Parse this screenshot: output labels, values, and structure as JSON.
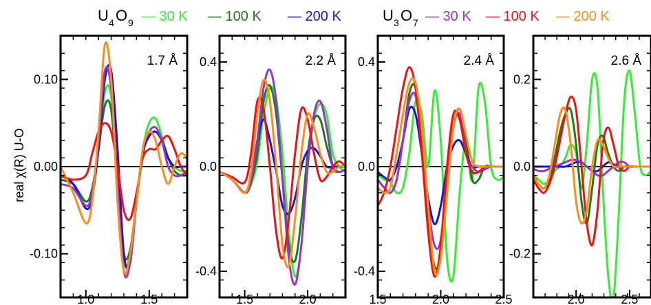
{
  "legend": {
    "group1": {
      "compound_base1": "U",
      "compound_sub1": "4",
      "compound_base2": "O",
      "compound_sub2": "9",
      "entries": [
        {
          "label": "— 30 K",
          "color": "#33ee33"
        },
        {
          "label": "— 100 K",
          "color": "#1f7a1f"
        },
        {
          "label": "— 200 K",
          "color": "#1515d9"
        }
      ]
    },
    "group2": {
      "compound_base1": "U",
      "compound_sub1": "3",
      "compound_base2": "O",
      "compound_sub2": "7",
      "entries": [
        {
          "label": "— 30 K",
          "color": "#9933cc"
        },
        {
          "label": "— 100 K",
          "color": "#ee1111"
        },
        {
          "label": "— 200 K",
          "color": "#ff8c1a"
        }
      ]
    }
  },
  "ylabel": "real χ(R) U-O",
  "chart_data": [
    {
      "type": "line",
      "annotation": "1.7 Å",
      "xlim": [
        0.8,
        1.8
      ],
      "ylim": [
        -0.15,
        0.15
      ],
      "xticks": [
        "1.0",
        "1.5"
      ],
      "xtick_values": [
        1.0,
        1.5
      ],
      "yticks": [
        "0.10",
        "0.00",
        "-0.10"
      ],
      "ytick_values": [
        0.1,
        0.0,
        -0.1
      ],
      "x": [
        0.8,
        0.9,
        1.0,
        1.05,
        1.1,
        1.15,
        1.2,
        1.25,
        1.3,
        1.35,
        1.4,
        1.45,
        1.5,
        1.55,
        1.6,
        1.65,
        1.7,
        1.75,
        1.8
      ],
      "series": [
        {
          "key": "U4O9-30K",
          "color": "#33ee33",
          "values": [
            -0.01,
            -0.02,
            -0.045,
            -0.03,
            0.02,
            0.085,
            0.08,
            -0.03,
            -0.11,
            -0.1,
            -0.04,
            0.02,
            0.05,
            0.055,
            0.035,
            0.01,
            0.0,
            -0.005,
            -0.005
          ]
        },
        {
          "key": "U4O9-100K",
          "color": "#1f7a1f",
          "values": [
            -0.015,
            -0.02,
            -0.04,
            -0.025,
            0.02,
            0.07,
            0.065,
            -0.02,
            -0.1,
            -0.095,
            -0.04,
            0.015,
            0.035,
            0.04,
            0.03,
            0.01,
            -0.005,
            -0.01,
            -0.01
          ]
        },
        {
          "key": "U4O9-200K",
          "color": "#1515d9",
          "values": [
            -0.01,
            -0.02,
            -0.048,
            -0.035,
            0.02,
            0.1,
            0.11,
            0.02,
            -0.1,
            -0.11,
            -0.04,
            0.015,
            0.035,
            0.04,
            0.03,
            0.01,
            0.0,
            0.0,
            0.0
          ]
        },
        {
          "key": "U3O7-30K",
          "color": "#9933cc",
          "values": [
            -0.02,
            -0.025,
            -0.045,
            -0.03,
            0.03,
            0.11,
            0.09,
            -0.02,
            -0.12,
            -0.11,
            -0.04,
            0.02,
            0.04,
            0.045,
            0.03,
            0.0,
            -0.01,
            -0.01,
            -0.005
          ]
        },
        {
          "key": "U3O7-100K",
          "color": "#ee1111",
          "values": [
            -0.01,
            -0.015,
            -0.01,
            0.015,
            0.04,
            0.05,
            0.04,
            0.0,
            -0.05,
            -0.06,
            -0.03,
            0.01,
            0.02,
            0.02,
            0.03,
            0.035,
            0.02,
            0.0,
            -0.01
          ]
        },
        {
          "key": "U3O7-200K",
          "color": "#ff8c1a",
          "values": [
            0.0,
            -0.03,
            -0.065,
            -0.04,
            0.04,
            0.14,
            0.1,
            -0.04,
            -0.12,
            -0.1,
            -0.04,
            0.02,
            0.04,
            0.03,
            0.0,
            -0.02,
            0.0,
            0.015,
            0.01
          ]
        }
      ]
    },
    {
      "type": "line",
      "annotation": "2.2 Å",
      "xlim": [
        1.3,
        2.3
      ],
      "ylim": [
        -0.5,
        0.5
      ],
      "xticks": [
        "1.5",
        "2.0"
      ],
      "xtick_values": [
        1.5,
        2.0
      ],
      "yticks": [
        "0.4",
        "0.0",
        "-0.4"
      ],
      "ytick_values": [
        0.4,
        0.0,
        -0.4
      ],
      "x": [
        1.3,
        1.4,
        1.5,
        1.55,
        1.6,
        1.65,
        1.7,
        1.75,
        1.8,
        1.85,
        1.9,
        1.95,
        2.0,
        2.05,
        2.1,
        2.15,
        2.2,
        2.25,
        2.3
      ],
      "series": [
        {
          "key": "U4O9-30K",
          "color": "#33ee33",
          "values": [
            -0.02,
            -0.05,
            -0.1,
            -0.07,
            0.02,
            0.2,
            0.3,
            0.26,
            0.05,
            -0.25,
            -0.42,
            -0.3,
            0.0,
            0.18,
            0.24,
            0.2,
            0.05,
            0.0,
            -0.02
          ]
        },
        {
          "key": "U4O9-100K",
          "color": "#1f7a1f",
          "values": [
            -0.02,
            -0.05,
            -0.1,
            -0.06,
            0.05,
            0.25,
            0.31,
            0.2,
            -0.05,
            -0.3,
            -0.36,
            -0.2,
            0.05,
            0.18,
            0.18,
            0.08,
            0.0,
            -0.02,
            -0.01
          ]
        },
        {
          "key": "U4O9-200K",
          "color": "#1515d9",
          "values": [
            -0.02,
            -0.05,
            -0.1,
            -0.05,
            0.1,
            0.18,
            0.1,
            -0.02,
            -0.15,
            -0.18,
            -0.12,
            0.0,
            0.06,
            0.07,
            0.04,
            0.0,
            0.0,
            0.0,
            0.0
          ]
        },
        {
          "key": "U3O7-30K",
          "color": "#9933cc",
          "values": [
            -0.02,
            -0.05,
            -0.1,
            -0.05,
            0.1,
            0.3,
            0.37,
            0.25,
            -0.05,
            -0.35,
            -0.45,
            -0.3,
            0.0,
            0.2,
            0.25,
            0.15,
            0.0,
            -0.02,
            -0.01
          ]
        },
        {
          "key": "U3O7-100K",
          "color": "#ee1111",
          "values": [
            -0.02,
            -0.04,
            -0.06,
            0.05,
            0.25,
            0.22,
            0.0,
            -0.25,
            -0.35,
            -0.2,
            0.05,
            0.22,
            0.18,
            0.05,
            -0.05,
            -0.04,
            0.0,
            0.02,
            0.0
          ]
        },
        {
          "key": "U3O7-200K",
          "color": "#ff8c1a",
          "values": [
            -0.02,
            -0.05,
            -0.1,
            -0.02,
            0.2,
            0.33,
            0.25,
            0.0,
            -0.3,
            -0.38,
            -0.2,
            0.05,
            0.2,
            0.15,
            0.05,
            -0.02,
            -0.02,
            0.0,
            0.0
          ]
        }
      ]
    },
    {
      "type": "line",
      "annotation": "2.4 Å",
      "xlim": [
        1.5,
        2.5
      ],
      "ylim": [
        -0.5,
        0.5
      ],
      "xticks": [
        "1.5",
        "2.0",
        "2.5"
      ],
      "xtick_values": [
        1.5,
        2.0,
        2.5
      ],
      "yticks": [
        "0.4",
        "0.0",
        "-0.4"
      ],
      "ytick_values": [
        0.4,
        0.0,
        -0.4
      ],
      "x": [
        1.5,
        1.55,
        1.6,
        1.65,
        1.7,
        1.75,
        1.8,
        1.85,
        1.9,
        1.95,
        2.0,
        2.05,
        2.1,
        2.15,
        2.2,
        2.25,
        2.3,
        2.35,
        2.4,
        2.45,
        2.5
      ],
      "series": [
        {
          "key": "U4O9-30K",
          "color": "#33ee33",
          "values": [
            -0.03,
            -0.05,
            -0.06,
            -0.1,
            -0.08,
            0.05,
            0.25,
            0.2,
            0.0,
            0.29,
            0.1,
            -0.35,
            -0.42,
            -0.1,
            0.1,
            -0.05,
            0.3,
            0.25,
            0.0,
            -0.05,
            -0.04
          ]
        },
        {
          "key": "U4O9-100K",
          "color": "#1f7a1f",
          "values": [
            -0.05,
            -0.08,
            -0.1,
            -0.05,
            0.1,
            0.28,
            0.3,
            0.1,
            -0.2,
            -0.38,
            -0.34,
            -0.1,
            0.15,
            0.22,
            0.1,
            -0.05,
            -0.05,
            0.0,
            0.0,
            0.0,
            0.0
          ]
        },
        {
          "key": "U4O9-200K",
          "color": "#1515d9",
          "values": [
            -0.02,
            -0.04,
            -0.05,
            0.0,
            0.1,
            0.22,
            0.2,
            0.05,
            -0.12,
            -0.22,
            -0.15,
            0.0,
            0.08,
            0.1,
            0.05,
            0.0,
            0.0,
            0.0,
            0.0,
            0.0,
            0.0
          ]
        },
        {
          "key": "U3O7-30K",
          "color": "#9933cc",
          "values": [
            -0.05,
            -0.08,
            -0.1,
            -0.05,
            0.1,
            0.25,
            0.27,
            0.1,
            -0.15,
            -0.3,
            -0.28,
            -0.05,
            0.15,
            0.2,
            0.05,
            0.0,
            -0.02,
            -0.01,
            0.0,
            0.0,
            0.0
          ]
        },
        {
          "key": "U3O7-100K",
          "color": "#ee1111",
          "values": [
            -0.15,
            -0.1,
            0.0,
            0.15,
            0.3,
            0.38,
            0.3,
            0.05,
            -0.25,
            -0.42,
            -0.3,
            0.0,
            0.2,
            0.18,
            0.05,
            -0.02,
            -0.02,
            0.0,
            0.0,
            0.0,
            0.0
          ]
        },
        {
          "key": "U3O7-200K",
          "color": "#ff8c1a",
          "values": [
            -0.08,
            -0.1,
            -0.08,
            0.05,
            0.2,
            0.32,
            0.32,
            0.15,
            -0.15,
            -0.4,
            -0.35,
            -0.1,
            0.15,
            0.22,
            0.12,
            0.02,
            0.0,
            0.0,
            0.0,
            0.0,
            0.0
          ]
        }
      ]
    },
    {
      "type": "line",
      "annotation": "2.6 Å",
      "xlim": [
        1.6,
        2.7
      ],
      "ylim": [
        -0.3,
        0.3
      ],
      "xticks": [
        "2.0",
        "2.5"
      ],
      "xtick_values": [
        2.0,
        2.5
      ],
      "yticks": [
        "0.2",
        "0.0",
        "-0.2"
      ],
      "ytick_values": [
        0.2,
        0.0,
        -0.2
      ],
      "x": [
        1.6,
        1.65,
        1.7,
        1.75,
        1.8,
        1.85,
        1.9,
        1.95,
        2.0,
        2.05,
        2.1,
        2.15,
        2.2,
        2.25,
        2.3,
        2.35,
        2.4,
        2.45,
        2.5,
        2.55,
        2.6,
        2.65,
        2.7
      ],
      "series": [
        {
          "key": "U4O9-30K",
          "color": "#33ee33",
          "values": [
            -0.02,
            -0.03,
            -0.04,
            -0.03,
            -0.01,
            0.0,
            0.02,
            0.05,
            0.03,
            -0.05,
            0.05,
            0.2,
            0.18,
            -0.05,
            -0.25,
            -0.3,
            -0.1,
            0.15,
            0.22,
            0.12,
            0.0,
            -0.02,
            -0.01
          ]
        },
        {
          "key": "U4O9-100K",
          "color": "#1f7a1f",
          "values": [
            -0.02,
            -0.04,
            -0.05,
            -0.03,
            0.02,
            0.08,
            0.12,
            0.13,
            0.05,
            -0.08,
            -0.13,
            -0.05,
            0.05,
            0.07,
            0.03,
            0.0,
            -0.01,
            0.0,
            0.0,
            0.0,
            0.0,
            0.0,
            0.0
          ]
        },
        {
          "key": "U4O9-200K",
          "color": "#1515d9",
          "values": [
            0.0,
            0.0,
            0.0,
            0.0,
            0.0,
            0.0,
            0.0,
            0.005,
            0.01,
            0.01,
            0.0,
            -0.01,
            -0.01,
            0.0,
            0.01,
            0.005,
            0.0,
            0.0,
            0.0,
            0.0,
            0.0,
            0.0,
            0.0
          ]
        },
        {
          "key": "U3O7-30K",
          "color": "#9933cc",
          "values": [
            -0.005,
            -0.01,
            -0.01,
            -0.005,
            0.0,
            0.005,
            0.01,
            0.015,
            0.015,
            0.01,
            0.0,
            -0.01,
            -0.02,
            -0.02,
            -0.01,
            0.0,
            0.01,
            0.01,
            0.0,
            0.0,
            0.0,
            0.0,
            0.0
          ]
        },
        {
          "key": "U3O7-100K",
          "color": "#ee1111",
          "values": [
            -0.03,
            -0.05,
            -0.06,
            -0.04,
            0.0,
            0.06,
            0.12,
            0.16,
            0.13,
            0.0,
            -0.13,
            -0.18,
            -0.1,
            0.05,
            0.09,
            0.05,
            0.0,
            -0.01,
            0.0,
            0.0,
            0.0,
            0.0,
            0.0
          ]
        },
        {
          "key": "U3O7-200K",
          "color": "#ff8c1a",
          "values": [
            -0.02,
            -0.04,
            -0.05,
            -0.02,
            0.05,
            0.12,
            0.13,
            0.05,
            -0.08,
            -0.13,
            -0.1,
            0.0,
            0.06,
            0.05,
            0.02,
            0.0,
            0.0,
            0.0,
            0.0,
            0.0,
            0.0,
            0.0,
            0.0
          ]
        }
      ]
    }
  ]
}
